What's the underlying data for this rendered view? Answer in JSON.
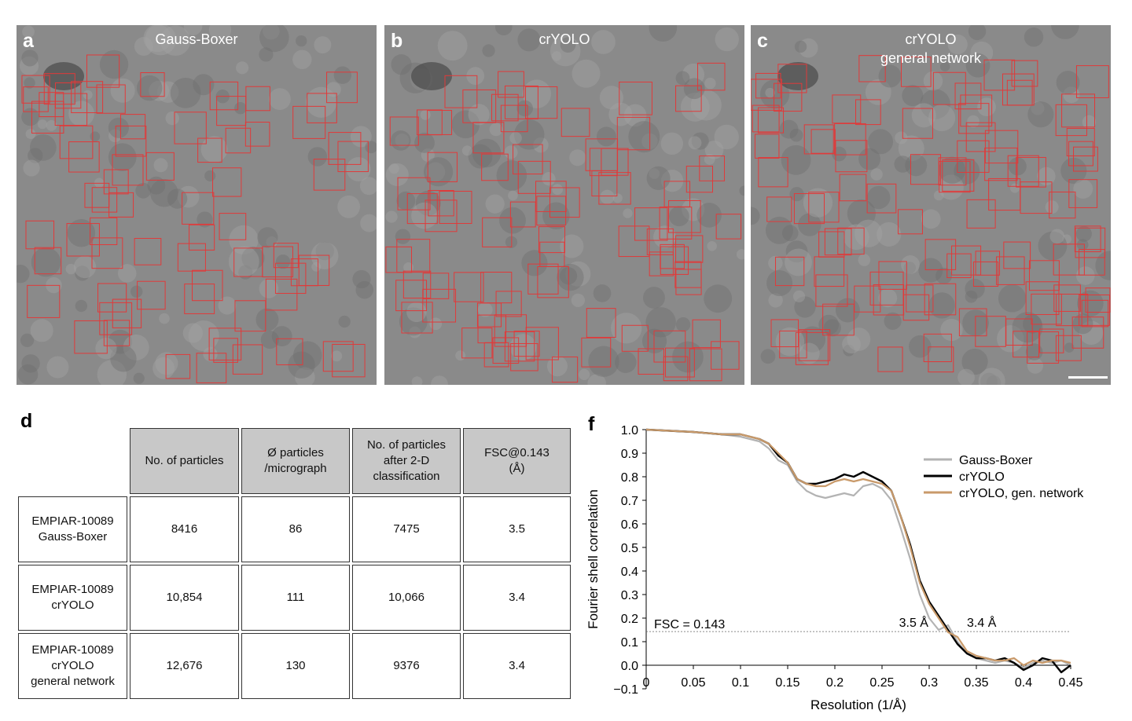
{
  "panels": [
    {
      "letter": "a",
      "title": "Gauss-Boxer",
      "title2": ""
    },
    {
      "letter": "b",
      "title": "crYOLO",
      "title2": ""
    },
    {
      "letter": "c",
      "title": "crYOLO",
      "title2": "general network"
    }
  ],
  "colors": {
    "box": "#e03a3a",
    "micrograph": "#8a8a8a",
    "gauss": "#b3b3b3",
    "cryolo": "#000000",
    "general": "#c99a6a"
  },
  "table": {
    "letter": "d",
    "headers": [
      "No. of particles",
      "Ø particles\n/micrograph",
      "No. of particles\nafter 2-D\nclassification",
      "FSC@0.143\n(Å)"
    ],
    "rows": [
      {
        "label": "EMPIAR-10089\nGauss-Boxer",
        "cells": [
          "8416",
          "86",
          "7475",
          "3.5"
        ]
      },
      {
        "label": "EMPIAR-10089\ncrYOLO",
        "cells": [
          "10,854",
          "111",
          "10,066",
          "3.4"
        ]
      },
      {
        "label": "EMPIAR-10089\ncrYOLO\ngeneral network",
        "cells": [
          "12,676",
          "130",
          "9376",
          "3.4"
        ]
      }
    ]
  },
  "chart_data": {
    "type": "line",
    "letter": "f",
    "title": "",
    "xlabel": "Resolution (1/Å)",
    "ylabel": "Fourier shell correlation",
    "xlim": [
      0,
      0.45
    ],
    "ylim": [
      -0.1,
      1.0
    ],
    "xticks": [
      0,
      0.05,
      0.1,
      0.15,
      0.2,
      0.25,
      0.3,
      0.35,
      0.4,
      0.45
    ],
    "xtick_labels": [
      "0",
      "0.05",
      "0.1",
      "0.15",
      "0.2",
      "0.25",
      "0.3",
      "0.35",
      "0.4",
      "0.45"
    ],
    "yticks": [
      -0.1,
      0.0,
      0.1,
      0.2,
      0.3,
      0.4,
      0.5,
      0.6,
      0.7,
      0.8,
      0.9,
      1.0
    ],
    "ytick_labels": [
      "−0.1",
      "0.0",
      "0.1",
      "0.2",
      "0.3",
      "0.4",
      "0.5",
      "0.6",
      "0.7",
      "0.8",
      "0.9",
      "1.0"
    ],
    "threshold": {
      "value": 0.143,
      "label": "FSC = 0.143"
    },
    "annotations": [
      {
        "text": "3.5 Å",
        "x": 0.268,
        "y": 0.17
      },
      {
        "text": "3.4 Å",
        "x": 0.34,
        "y": 0.17
      }
    ],
    "legend": "top-right",
    "series": [
      {
        "name": "Gauss-Boxer",
        "color": "#b3b3b3",
        "x": [
          0,
          0.05,
          0.08,
          0.1,
          0.12,
          0.13,
          0.14,
          0.15,
          0.16,
          0.17,
          0.18,
          0.19,
          0.2,
          0.21,
          0.22,
          0.23,
          0.24,
          0.25,
          0.26,
          0.27,
          0.28,
          0.29,
          0.3,
          0.31,
          0.32,
          0.33,
          0.34,
          0.35,
          0.36,
          0.37,
          0.38,
          0.39,
          0.4,
          0.41,
          0.42,
          0.43,
          0.44,
          0.45
        ],
        "y": [
          1.0,
          0.99,
          0.98,
          0.97,
          0.95,
          0.92,
          0.87,
          0.85,
          0.78,
          0.74,
          0.72,
          0.71,
          0.72,
          0.73,
          0.72,
          0.76,
          0.77,
          0.75,
          0.7,
          0.58,
          0.45,
          0.3,
          0.2,
          0.15,
          0.17,
          0.1,
          0.05,
          0.03,
          0.02,
          0.01,
          0.02,
          0.01,
          -0.01,
          0.01,
          0.02,
          0.01,
          0.02,
          0.0
        ]
      },
      {
        "name": "crYOLO",
        "color": "#000000",
        "x": [
          0,
          0.05,
          0.08,
          0.1,
          0.12,
          0.13,
          0.14,
          0.15,
          0.16,
          0.17,
          0.18,
          0.19,
          0.2,
          0.21,
          0.22,
          0.23,
          0.24,
          0.25,
          0.26,
          0.27,
          0.28,
          0.29,
          0.3,
          0.31,
          0.32,
          0.33,
          0.34,
          0.35,
          0.36,
          0.37,
          0.38,
          0.39,
          0.4,
          0.41,
          0.42,
          0.43,
          0.44,
          0.45
        ],
        "y": [
          1.0,
          0.99,
          0.98,
          0.98,
          0.96,
          0.94,
          0.89,
          0.86,
          0.79,
          0.77,
          0.77,
          0.78,
          0.79,
          0.81,
          0.8,
          0.82,
          0.8,
          0.78,
          0.74,
          0.63,
          0.51,
          0.36,
          0.27,
          0.21,
          0.15,
          0.09,
          0.05,
          0.03,
          0.03,
          0.02,
          0.03,
          0.01,
          -0.02,
          0.0,
          0.03,
          0.02,
          -0.03,
          0.0
        ]
      },
      {
        "name": "crYOLO, gen. network",
        "color": "#c99a6a",
        "x": [
          0,
          0.05,
          0.08,
          0.1,
          0.12,
          0.13,
          0.14,
          0.15,
          0.16,
          0.17,
          0.18,
          0.19,
          0.2,
          0.21,
          0.22,
          0.23,
          0.24,
          0.25,
          0.26,
          0.27,
          0.28,
          0.29,
          0.3,
          0.31,
          0.32,
          0.33,
          0.34,
          0.35,
          0.36,
          0.37,
          0.38,
          0.39,
          0.4,
          0.41,
          0.42,
          0.43,
          0.44,
          0.45
        ],
        "y": [
          1.0,
          0.99,
          0.98,
          0.98,
          0.96,
          0.94,
          0.9,
          0.86,
          0.79,
          0.77,
          0.76,
          0.76,
          0.78,
          0.79,
          0.78,
          0.79,
          0.78,
          0.77,
          0.74,
          0.63,
          0.5,
          0.35,
          0.26,
          0.2,
          0.14,
          0.12,
          0.06,
          0.04,
          0.03,
          0.02,
          0.02,
          0.03,
          0.0,
          0.02,
          0.01,
          0.02,
          0.02,
          0.01
        ]
      }
    ]
  }
}
